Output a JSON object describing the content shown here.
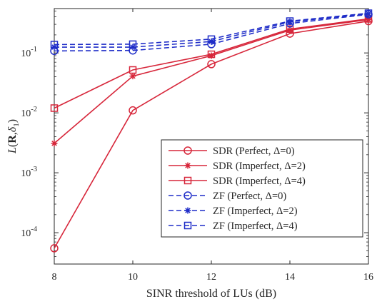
{
  "chart_data": {
    "type": "line",
    "xlabel": "SINR threshold of LUs (dB)",
    "ylabel": "L(R,δ₁)",
    "ylabel_parts": {
      "prefix": "L",
      "open": "(",
      "bold": "R",
      "mid": ",",
      "sym": "δ",
      "sub": "1",
      "close": ")"
    },
    "x_scale": "linear",
    "y_scale": "log",
    "xlim": [
      8,
      16
    ],
    "ylim": [
      3e-05,
      0.55
    ],
    "x_ticks": [
      8,
      10,
      12,
      14,
      16
    ],
    "x_tick_labels": [
      "8",
      "10",
      "12",
      "14",
      "16"
    ],
    "y_ticks": [
      0.0001,
      0.001,
      0.01,
      0.1
    ],
    "y_tick_labels": [
      {
        "base": "10",
        "exp": "-4"
      },
      {
        "base": "10",
        "exp": "-3"
      },
      {
        "base": "10",
        "exp": "-2"
      },
      {
        "base": "10",
        "exp": "-1"
      }
    ],
    "grid": false,
    "legend_position": "bottom-right",
    "x": [
      8,
      10,
      12,
      14,
      16
    ],
    "series": [
      {
        "name": "SDR (Perfect, Δ=0)",
        "color": "#d7263a",
        "dash": "solid",
        "marker": "circle",
        "values": [
          5.5e-05,
          0.011,
          0.065,
          0.21,
          0.34
        ]
      },
      {
        "name": "SDR (Imperfect, Δ=2)",
        "color": "#d7263a",
        "dash": "solid",
        "marker": "asterisk",
        "values": [
          0.0031,
          0.041,
          0.09,
          0.24,
          0.36
        ]
      },
      {
        "name": "SDR (Imperfect, Δ=4)",
        "color": "#d7263a",
        "dash": "solid",
        "marker": "square",
        "values": [
          0.012,
          0.052,
          0.095,
          0.25,
          0.37
        ]
      },
      {
        "name": "ZF (Perfect, Δ=0)",
        "color": "#1f2dc8",
        "dash": "dashed",
        "marker": "circle",
        "values": [
          0.108,
          0.11,
          0.14,
          0.31,
          0.44
        ]
      },
      {
        "name": "ZF (Imperfect, Δ=2)",
        "color": "#1f2dc8",
        "dash": "dashed",
        "marker": "asterisk",
        "values": [
          0.125,
          0.125,
          0.155,
          0.33,
          0.45
        ]
      },
      {
        "name": "ZF (Imperfect, Δ=4)",
        "color": "#1f2dc8",
        "dash": "dashed",
        "marker": "square",
        "values": [
          0.138,
          0.14,
          0.17,
          0.34,
          0.46
        ]
      }
    ]
  }
}
